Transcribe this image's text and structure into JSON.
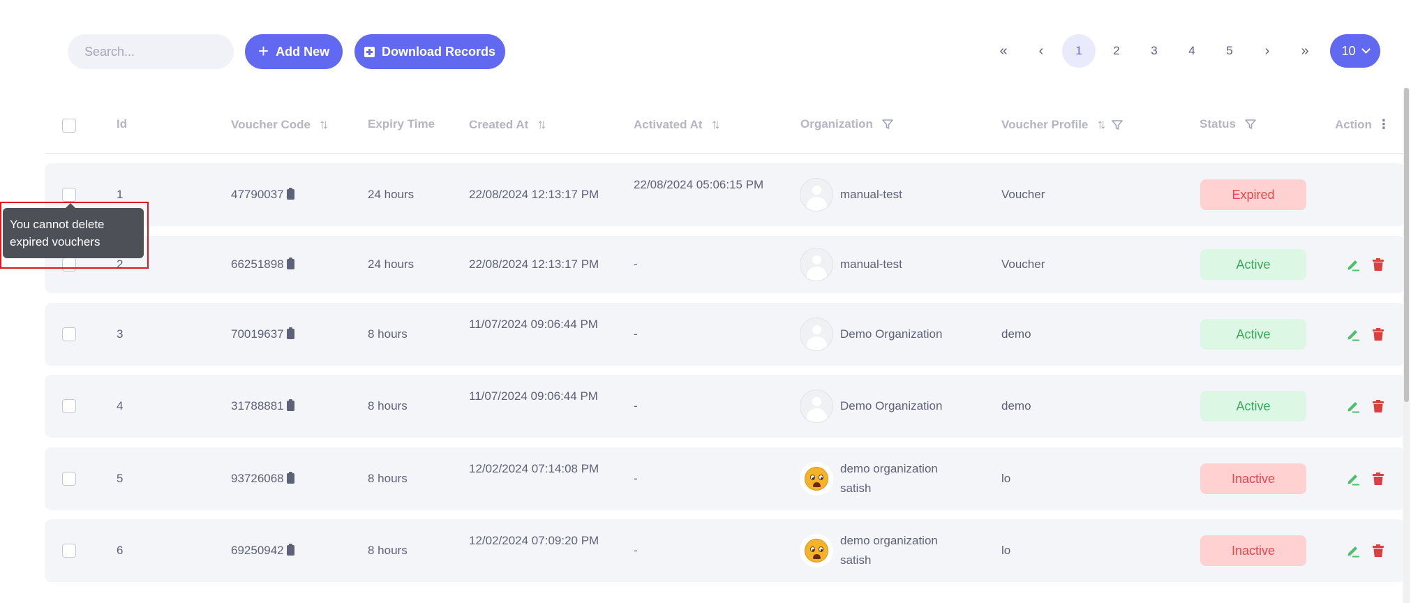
{
  "toolbar": {
    "search_placeholder": "Search...",
    "add_label": "Add New",
    "download_label": "Download Records",
    "plus_glyph": "+"
  },
  "pagination": {
    "first_glyph": "«",
    "prev_glyph": "‹",
    "pages": [
      "1",
      "2",
      "3",
      "4",
      "5"
    ],
    "current_page": "1",
    "next_glyph": "›",
    "last_glyph": "»",
    "per_page": "10"
  },
  "table": {
    "columns": {
      "id": "Id",
      "voucher_code": "Voucher Code",
      "expiry_time": "Expiry Time",
      "created_at": "Created At",
      "activated_at": "Activated At",
      "organization": "Organization",
      "voucher_profile": "Voucher Profile",
      "status": "Status",
      "action": "Action"
    },
    "sort_glyph": "↑↓",
    "kebab_glyph": "⋮",
    "rows": [
      {
        "id": "1",
        "code": "47790037",
        "expiry": "24 hours",
        "created": "22/08/2024 12:13:17 PM",
        "activated": "22/08/2024 05:06:15 PM",
        "org": "manual-test",
        "profile": "Voucher",
        "status": "Expired"
      },
      {
        "id": "2",
        "code": "66251898",
        "expiry": "24 hours",
        "created": "22/08/2024 12:13:17 PM",
        "activated": "-",
        "org": "manual-test",
        "profile": "Voucher",
        "status": "Active"
      },
      {
        "id": "3",
        "code": "70019637",
        "expiry": "8 hours",
        "created": "11/07/2024 09:06:44 PM",
        "activated": "-",
        "org": "Demo Organization",
        "profile": "demo",
        "status": "Active"
      },
      {
        "id": "4",
        "code": "31788881",
        "expiry": "8 hours",
        "created": "11/07/2024 09:06:44 PM",
        "activated": "-",
        "org": "Demo Organization",
        "profile": "demo",
        "status": "Active"
      },
      {
        "id": "5",
        "code": "93726068",
        "expiry": "8 hours",
        "created": "12/02/2024 07:14:08 PM",
        "activated": "-",
        "org": "demo organization satish",
        "profile": "lo",
        "status": "Inactive"
      },
      {
        "id": "6",
        "code": "69250942",
        "expiry": "8 hours",
        "created": "12/02/2024 07:09:20 PM",
        "activated": "-",
        "org": "demo organization satish",
        "profile": "lo",
        "status": "Inactive"
      }
    ]
  },
  "tooltip": {
    "text": "You cannot delete expired vouchers"
  },
  "colors": {
    "primary": "#6169f0",
    "expired_bg": "#ffd1d1",
    "expired_fg": "#e24a4a",
    "active_bg": "#dcf7e3",
    "active_fg": "#3aa55c",
    "edit_icon": "#4cc06a",
    "delete_icon": "#d94040"
  }
}
